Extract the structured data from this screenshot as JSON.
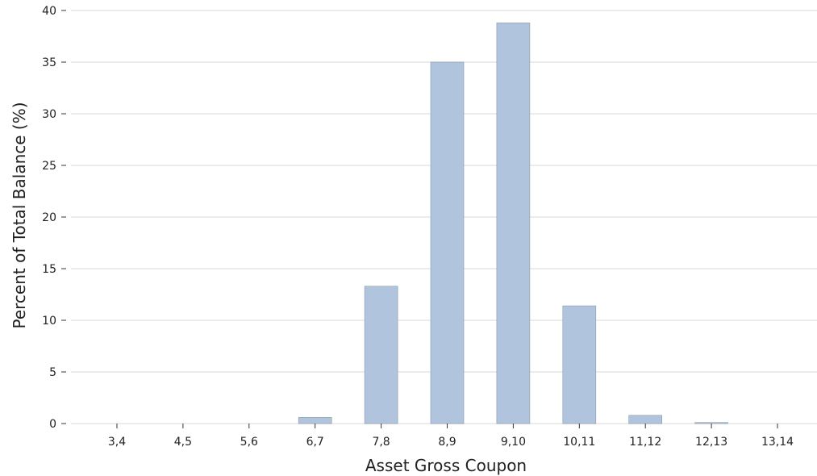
{
  "chart_data": {
    "type": "bar",
    "title": "",
    "xlabel": "Asset Gross Coupon",
    "ylabel": "Percent of Total Balance (%)",
    "categories": [
      "3,4",
      "4,5",
      "5,6",
      "6,7",
      "7,8",
      "8,9",
      "9,10",
      "10,11",
      "11,12",
      "12,13",
      "13,14"
    ],
    "values": [
      0,
      0,
      0,
      0.6,
      13.3,
      35.0,
      38.8,
      11.4,
      0.8,
      0.1,
      0
    ],
    "ylim": [
      0,
      40
    ],
    "yticks": [
      0,
      5,
      10,
      15,
      20,
      25,
      30,
      35,
      40
    ],
    "grid": "horizontal",
    "legend": "none",
    "colors": {
      "bar": "#b0c4de",
      "bar_edge": "#8a9aab",
      "grid": "#ececec"
    }
  }
}
